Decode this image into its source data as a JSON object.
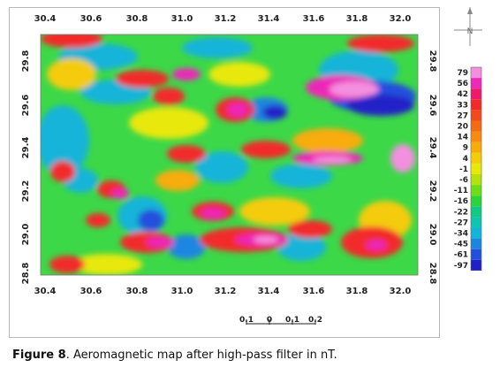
{
  "caption": {
    "label": "Figure 8",
    "text": ". Aeromagnetic map after high-pass filter in nT."
  },
  "map": {
    "x_ticks": [
      "30.4",
      "30.6",
      "30.8",
      "31.0",
      "31.2",
      "31.4",
      "31.6",
      "31.8",
      "32.0"
    ],
    "y_ticks_left": [
      "29.8",
      "29.6",
      "29.4",
      "29.2",
      "29.0",
      "28.8"
    ],
    "y_ticks_right": [
      "29.8",
      "29.6",
      "29.4",
      "29.2",
      "29.0",
      "28.8"
    ],
    "scale_bar": {
      "labels": [
        "0.1",
        "0",
        "0.1",
        "0.2"
      ]
    },
    "north_arrow": {
      "letter": "N"
    }
  },
  "legend": {
    "values": [
      "79",
      "56",
      "42",
      "33",
      "27",
      "20",
      "14",
      "9",
      "4",
      "-1",
      "-6",
      "-11",
      "-16",
      "-22",
      "-27",
      "-34",
      "-45",
      "-61",
      "-97"
    ],
    "colors": [
      "#f48fe0",
      "#ee28b8",
      "#f0186a",
      "#f22a2a",
      "#f24a1c",
      "#f56a14",
      "#f78a10",
      "#f8ac0a",
      "#f4cc08",
      "#e8e80a",
      "#b4e20c",
      "#6edc16",
      "#2cd43a",
      "#12c882",
      "#10c4b4",
      "#14b4d8",
      "#1a86e0",
      "#2250dc",
      "#2020c8"
    ]
  },
  "colors": {
    "frame": "#b8b8b8",
    "background": "#ffffff"
  }
}
